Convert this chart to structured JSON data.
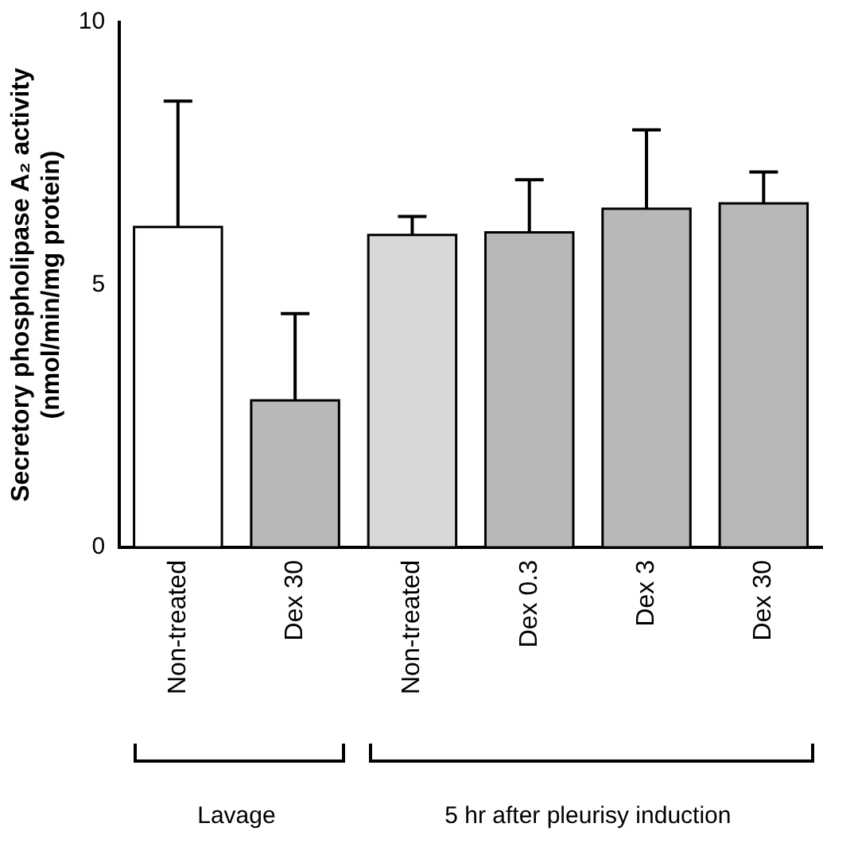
{
  "chart_data": {
    "type": "bar",
    "ylabel": "Secretory phospholipase A₂ activity\n(nmol/min/mg protein)",
    "categories": [
      "Non-treated",
      "Dex 30",
      "Non-treated",
      "Dex 0.3",
      "Dex 3",
      "Dex 30"
    ],
    "values": [
      6.1,
      2.8,
      5.95,
      6.0,
      6.45,
      6.55
    ],
    "errors": [
      2.4,
      1.65,
      0.35,
      1.0,
      1.5,
      0.6
    ],
    "colors": [
      "#ffffff",
      "#b8b8b8",
      "#d8d8d8",
      "#b8b8b8",
      "#b8b8b8",
      "#b8b8b8"
    ],
    "ylim": [
      0,
      10
    ],
    "yticks": [
      0,
      5,
      10
    ],
    "grid": false,
    "legend": false,
    "annotations": [
      "Lavage",
      "5 hr after pleurisy induction"
    ]
  }
}
